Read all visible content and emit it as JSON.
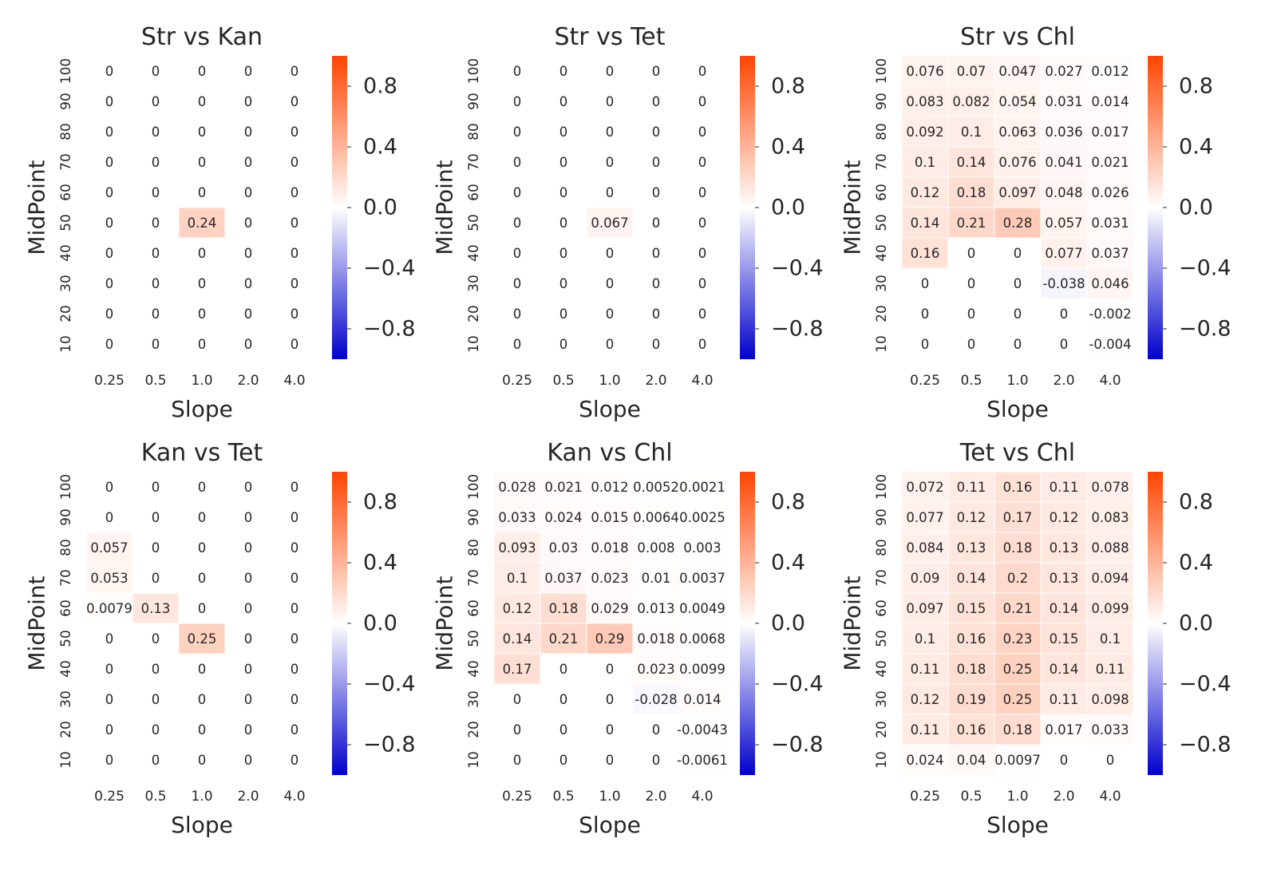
{
  "figure": {
    "colorbar": {
      "ticks": [
        "0.8",
        "0.4",
        "0.0",
        "−0.4",
        "−0.8"
      ],
      "tick_values": [
        0.8,
        0.4,
        0.0,
        -0.4,
        -0.8
      ],
      "vmin": -1.0,
      "vmax": 1.0,
      "color_low": "#0000cc",
      "color_mid": "#ffffff",
      "color_high": "#ff4500"
    }
  },
  "chart_data": [
    {
      "type": "heatmap",
      "title": "Str vs Kan",
      "xlabel": "Slope",
      "ylabel": "MidPoint",
      "x_categories": [
        "0.25",
        "0.5",
        "1.0",
        "2.0",
        "4.0"
      ],
      "y_categories": [
        "100",
        "90",
        "80",
        "70",
        "60",
        "50",
        "40",
        "30",
        "20",
        "10"
      ],
      "values": [
        [
          "0",
          "0",
          "0",
          "0",
          "0"
        ],
        [
          "0",
          "0",
          "0",
          "0",
          "0"
        ],
        [
          "0",
          "0",
          "0",
          "0",
          "0"
        ],
        [
          "0",
          "0",
          "0",
          "0",
          "0"
        ],
        [
          "0",
          "0",
          "0",
          "0",
          "0"
        ],
        [
          "0",
          "0",
          "0.24",
          "0",
          "0"
        ],
        [
          "0",
          "0",
          "0",
          "0",
          "0"
        ],
        [
          "0",
          "0",
          "0",
          "0",
          "0"
        ],
        [
          "0",
          "0",
          "0",
          "0",
          "0"
        ],
        [
          "0",
          "0",
          "0",
          "0",
          "0"
        ]
      ]
    },
    {
      "type": "heatmap",
      "title": "Str vs Tet",
      "xlabel": "Slope",
      "ylabel": "MidPoint",
      "x_categories": [
        "0.25",
        "0.5",
        "1.0",
        "2.0",
        "4.0"
      ],
      "y_categories": [
        "100",
        "90",
        "80",
        "70",
        "60",
        "50",
        "40",
        "30",
        "20",
        "10"
      ],
      "values": [
        [
          "0",
          "0",
          "0",
          "0",
          "0"
        ],
        [
          "0",
          "0",
          "0",
          "0",
          "0"
        ],
        [
          "0",
          "0",
          "0",
          "0",
          "0"
        ],
        [
          "0",
          "0",
          "0",
          "0",
          "0"
        ],
        [
          "0",
          "0",
          "0",
          "0",
          "0"
        ],
        [
          "0",
          "0",
          "0.067",
          "0",
          "0"
        ],
        [
          "0",
          "0",
          "0",
          "0",
          "0"
        ],
        [
          "0",
          "0",
          "0",
          "0",
          "0"
        ],
        [
          "0",
          "0",
          "0",
          "0",
          "0"
        ],
        [
          "0",
          "0",
          "0",
          "0",
          "0"
        ]
      ]
    },
    {
      "type": "heatmap",
      "title": "Str vs Chl",
      "xlabel": "Slope",
      "ylabel": "MidPoint",
      "x_categories": [
        "0.25",
        "0.5",
        "1.0",
        "2.0",
        "4.0"
      ],
      "y_categories": [
        "100",
        "90",
        "80",
        "70",
        "60",
        "50",
        "40",
        "30",
        "20",
        "10"
      ],
      "values": [
        [
          "0.076",
          "0.07",
          "0.047",
          "0.027",
          "0.012"
        ],
        [
          "0.083",
          "0.082",
          "0.054",
          "0.031",
          "0.014"
        ],
        [
          "0.092",
          "0.1",
          "0.063",
          "0.036",
          "0.017"
        ],
        [
          "0.1",
          "0.14",
          "0.076",
          "0.041",
          "0.021"
        ],
        [
          "0.12",
          "0.18",
          "0.097",
          "0.048",
          "0.026"
        ],
        [
          "0.14",
          "0.21",
          "0.28",
          "0.057",
          "0.031"
        ],
        [
          "0.16",
          "0",
          "0",
          "0.077",
          "0.037"
        ],
        [
          "0",
          "0",
          "0",
          "-0.038",
          "0.046"
        ],
        [
          "0",
          "0",
          "0",
          "0",
          "-0.002"
        ],
        [
          "0",
          "0",
          "0",
          "0",
          "-0.004"
        ]
      ]
    },
    {
      "type": "heatmap",
      "title": "Kan vs Tet",
      "xlabel": "Slope",
      "ylabel": "MidPoint",
      "x_categories": [
        "0.25",
        "0.5",
        "1.0",
        "2.0",
        "4.0"
      ],
      "y_categories": [
        "100",
        "90",
        "80",
        "70",
        "60",
        "50",
        "40",
        "30",
        "20",
        "10"
      ],
      "values": [
        [
          "0",
          "0",
          "0",
          "0",
          "0"
        ],
        [
          "0",
          "0",
          "0",
          "0",
          "0"
        ],
        [
          "0.057",
          "0",
          "0",
          "0",
          "0"
        ],
        [
          "0.053",
          "0",
          "0",
          "0",
          "0"
        ],
        [
          "0.0079",
          "0.13",
          "0",
          "0",
          "0"
        ],
        [
          "0",
          "0",
          "0.25",
          "0",
          "0"
        ],
        [
          "0",
          "0",
          "0",
          "0",
          "0"
        ],
        [
          "0",
          "0",
          "0",
          "0",
          "0"
        ],
        [
          "0",
          "0",
          "0",
          "0",
          "0"
        ],
        [
          "0",
          "0",
          "0",
          "0",
          "0"
        ]
      ]
    },
    {
      "type": "heatmap",
      "title": "Kan vs Chl",
      "xlabel": "Slope",
      "ylabel": "MidPoint",
      "x_categories": [
        "0.25",
        "0.5",
        "1.0",
        "2.0",
        "4.0"
      ],
      "y_categories": [
        "100",
        "90",
        "80",
        "70",
        "60",
        "50",
        "40",
        "30",
        "20",
        "10"
      ],
      "values": [
        [
          "0.028",
          "0.021",
          "0.012",
          "0.0052",
          "0.0021"
        ],
        [
          "0.033",
          "0.024",
          "0.015",
          "0.0064",
          "0.0025"
        ],
        [
          "0.093",
          "0.03",
          "0.018",
          "0.008",
          "0.003"
        ],
        [
          "0.1",
          "0.037",
          "0.023",
          "0.01",
          "0.0037"
        ],
        [
          "0.12",
          "0.18",
          "0.029",
          "0.013",
          "0.0049"
        ],
        [
          "0.14",
          "0.21",
          "0.29",
          "0.018",
          "0.0068"
        ],
        [
          "0.17",
          "0",
          "0",
          "0.023",
          "0.0099"
        ],
        [
          "0",
          "0",
          "0",
          "-0.028",
          "0.014"
        ],
        [
          "0",
          "0",
          "0",
          "0",
          "-0.0043"
        ],
        [
          "0",
          "0",
          "0",
          "0",
          "-0.0061"
        ]
      ]
    },
    {
      "type": "heatmap",
      "title": "Tet vs Chl",
      "xlabel": "Slope",
      "ylabel": "MidPoint",
      "x_categories": [
        "0.25",
        "0.5",
        "1.0",
        "2.0",
        "4.0"
      ],
      "y_categories": [
        "100",
        "90",
        "80",
        "70",
        "60",
        "50",
        "40",
        "30",
        "20",
        "10"
      ],
      "values": [
        [
          "0.072",
          "0.11",
          "0.16",
          "0.11",
          "0.078"
        ],
        [
          "0.077",
          "0.12",
          "0.17",
          "0.12",
          "0.083"
        ],
        [
          "0.084",
          "0.13",
          "0.18",
          "0.13",
          "0.088"
        ],
        [
          "0.09",
          "0.14",
          "0.2",
          "0.13",
          "0.094"
        ],
        [
          "0.097",
          "0.15",
          "0.21",
          "0.14",
          "0.099"
        ],
        [
          "0.1",
          "0.16",
          "0.23",
          "0.15",
          "0.1"
        ],
        [
          "0.11",
          "0.18",
          "0.25",
          "0.14",
          "0.11"
        ],
        [
          "0.12",
          "0.19",
          "0.25",
          "0.11",
          "0.098"
        ],
        [
          "0.11",
          "0.16",
          "0.18",
          "0.017",
          "0.033"
        ],
        [
          "0.024",
          "0.04",
          "0.0097",
          "0",
          "0"
        ]
      ]
    }
  ]
}
